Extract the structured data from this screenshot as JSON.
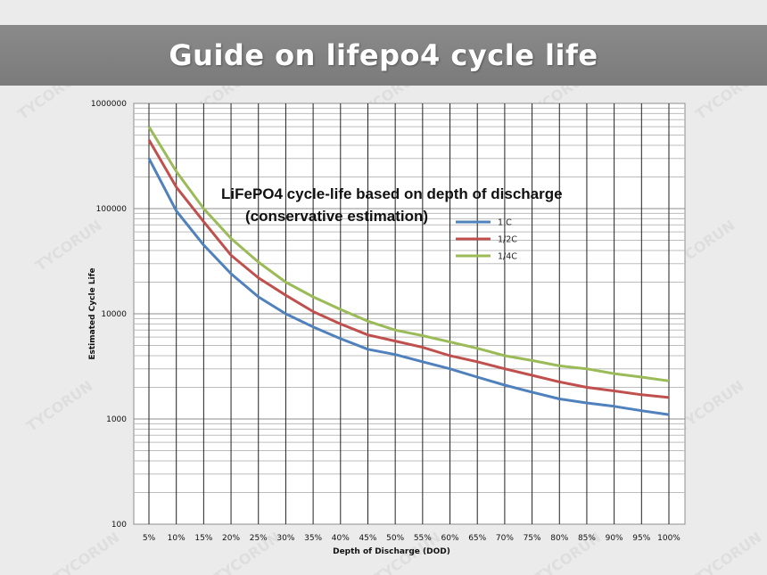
{
  "banner": {
    "title": "Guide on lifepo4 cycle life"
  },
  "watermark": {
    "text": "TYCORUN"
  },
  "chart_data": {
    "type": "line",
    "title": "LiFePO4 cycle-life based on depth of discharge",
    "subtitle": "(conservative estimation)",
    "xlabel": "Depth of Discharge (DOD)",
    "ylabel": "Estimated Cycle Life",
    "yscale": "log",
    "ylim": [
      100,
      1000000
    ],
    "yticks": [
      100,
      1000,
      10000,
      100000,
      1000000
    ],
    "ytick_labels": [
      "100",
      "1000",
      "10000",
      "100000",
      "1000000"
    ],
    "grid": true,
    "legend_position": "right, below title",
    "categories": [
      "5%",
      "10%",
      "15%",
      "20%",
      "25%",
      "30%",
      "35%",
      "40%",
      "45%",
      "50%",
      "55%",
      "60%",
      "65%",
      "70%",
      "75%",
      "80%",
      "85%",
      "90%",
      "95%",
      "100%"
    ],
    "series": [
      {
        "name": "1 C",
        "color": "#4f81bd",
        "values": [
          300000,
          95000,
          45000,
          24000,
          14500,
          10000,
          7500,
          5800,
          4600,
          4100,
          3500,
          3000,
          2500,
          2100,
          1800,
          1550,
          1420,
          1320,
          1200,
          1100
        ]
      },
      {
        "name": "1/2C",
        "color": "#c0504d",
        "values": [
          450000,
          160000,
          75000,
          36000,
          22000,
          15000,
          10500,
          8000,
          6300,
          5500,
          4800,
          4000,
          3500,
          3000,
          2600,
          2250,
          2000,
          1850,
          1700,
          1600
        ]
      },
      {
        "name": "1/4C",
        "color": "#9bbb59",
        "values": [
          600000,
          225000,
          100000,
          52000,
          31000,
          20000,
          14500,
          11000,
          8500,
          7000,
          6200,
          5400,
          4700,
          4000,
          3600,
          3200,
          3000,
          2700,
          2500,
          2300
        ]
      }
    ]
  }
}
